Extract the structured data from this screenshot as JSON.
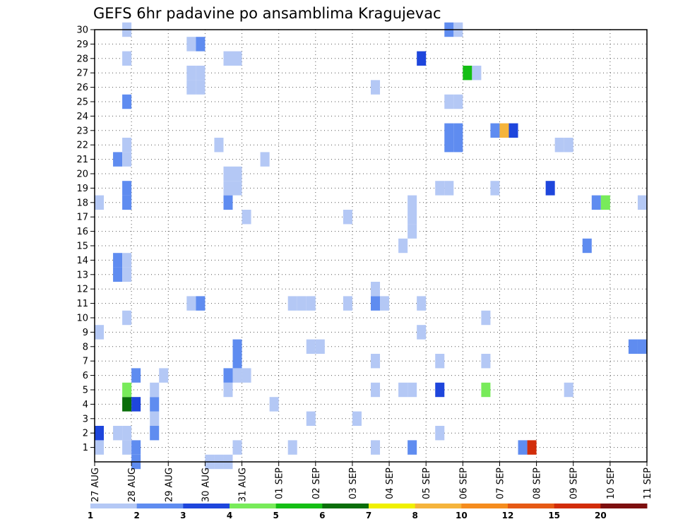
{
  "chart_data": {
    "type": "heatmap",
    "title": "GEFS 6hr padavine po ansamblima Kragujevac",
    "xlabel": "",
    "ylabel": "",
    "x_tick_labels": [
      "27 AUG",
      "28 AUG",
      "29 AUG",
      "30 AUG",
      "31 AUG",
      "01 SEP",
      "02 SEP",
      "03 SEP",
      "04 SEP",
      "05 SEP",
      "06 SEP",
      "07 SEP",
      "08 SEP",
      "09 SEP",
      "10 SEP",
      "11 SEP"
    ],
    "x_range_days": [
      0,
      15
    ],
    "y_tick_labels": [
      "1",
      "2",
      "3",
      "4",
      "5",
      "6",
      "7",
      "8",
      "9",
      "10",
      "11",
      "12",
      "13",
      "14",
      "15",
      "16",
      "17",
      "18",
      "19",
      "20",
      "21",
      "22",
      "23",
      "24",
      "25",
      "26",
      "27",
      "28",
      "29",
      "30"
    ],
    "grid": true,
    "legend_placement": "bottom",
    "color_scale": {
      "bounds": [
        "1",
        "2",
        "3",
        "4",
        "5",
        "6",
        "7",
        "8",
        "10",
        "12",
        "15",
        "20"
      ],
      "colors": [
        "#b4c8f5",
        "#5f8cf0",
        "#1e46dc",
        "#78eb5a",
        "#14be14",
        "#0a6e0a",
        "#f0f000",
        "#f5b43c",
        "#f58c1e",
        "#e65a14",
        "#d22d0a",
        "#7d0f0f"
      ]
    },
    "cells": [
      {
        "day": 0.25,
        "member": 1,
        "class": 0
      },
      {
        "day": 0.25,
        "member": 2,
        "class": 2
      },
      {
        "day": 0.25,
        "member": 9,
        "class": 0
      },
      {
        "day": 0.25,
        "member": 18,
        "class": 0
      },
      {
        "day": 0.75,
        "member": 2,
        "class": 0
      },
      {
        "day": 0.75,
        "member": 13,
        "class": 1
      },
      {
        "day": 0.75,
        "member": 14,
        "class": 1
      },
      {
        "day": 0.75,
        "member": 21,
        "class": 1
      },
      {
        "day": 1.0,
        "member": 1,
        "class": 0
      },
      {
        "day": 1.0,
        "member": 2,
        "class": 0
      },
      {
        "day": 1.0,
        "member": 4,
        "class": 5
      },
      {
        "day": 1.0,
        "member": 5,
        "class": 3
      },
      {
        "day": 1.0,
        "member": 10,
        "class": 0
      },
      {
        "day": 1.0,
        "member": 13,
        "class": 0
      },
      {
        "day": 1.0,
        "member": 14,
        "class": 0
      },
      {
        "day": 1.0,
        "member": 18,
        "class": 1
      },
      {
        "day": 1.0,
        "member": 19,
        "class": 1
      },
      {
        "day": 1.0,
        "member": 21,
        "class": 0
      },
      {
        "day": 1.0,
        "member": 22,
        "class": 0
      },
      {
        "day": 1.0,
        "member": 25,
        "class": 1
      },
      {
        "day": 1.0,
        "member": 28,
        "class": 0
      },
      {
        "day": 1.0,
        "member": 30,
        "class": 0
      },
      {
        "day": 1.25,
        "member": 0,
        "class": 1
      },
      {
        "day": 1.25,
        "member": 1,
        "class": 1
      },
      {
        "day": 1.25,
        "member": 4,
        "class": 2
      },
      {
        "day": 1.25,
        "member": 6,
        "class": 1
      },
      {
        "day": 1.75,
        "member": 2,
        "class": 1
      },
      {
        "day": 1.75,
        "member": 3,
        "class": 0
      },
      {
        "day": 1.75,
        "member": 4,
        "class": 1
      },
      {
        "day": 1.75,
        "member": 5,
        "class": 0
      },
      {
        "day": 2.0,
        "member": 6,
        "class": 0
      },
      {
        "day": 2.75,
        "member": 11,
        "class": 0
      },
      {
        "day": 2.75,
        "member": 26,
        "class": 0
      },
      {
        "day": 2.75,
        "member": 27,
        "class": 0
      },
      {
        "day": 2.75,
        "member": 29,
        "class": 0
      },
      {
        "day": 3.0,
        "member": 11,
        "class": 1
      },
      {
        "day": 3.0,
        "member": 26,
        "class": 0
      },
      {
        "day": 3.0,
        "member": 27,
        "class": 0
      },
      {
        "day": 3.0,
        "member": 29,
        "class": 1
      },
      {
        "day": 3.25,
        "member": 0,
        "class": 0
      },
      {
        "day": 3.5,
        "member": 0,
        "class": 0
      },
      {
        "day": 3.5,
        "member": 22,
        "class": 0
      },
      {
        "day": 3.75,
        "member": 0,
        "class": 0
      },
      {
        "day": 3.75,
        "member": 5,
        "class": 0
      },
      {
        "day": 3.75,
        "member": 6,
        "class": 1
      },
      {
        "day": 3.75,
        "member": 18,
        "class": 1
      },
      {
        "day": 3.75,
        "member": 19,
        "class": 0
      },
      {
        "day": 3.75,
        "member": 20,
        "class": 0
      },
      {
        "day": 3.75,
        "member": 28,
        "class": 0
      },
      {
        "day": 4.0,
        "member": 1,
        "class": 0
      },
      {
        "day": 4.0,
        "member": 6,
        "class": 0
      },
      {
        "day": 4.0,
        "member": 7,
        "class": 1
      },
      {
        "day": 4.0,
        "member": 8,
        "class": 1
      },
      {
        "day": 4.0,
        "member": 19,
        "class": 0
      },
      {
        "day": 4.0,
        "member": 20,
        "class": 0
      },
      {
        "day": 4.0,
        "member": 28,
        "class": 0
      },
      {
        "day": 4.25,
        "member": 6,
        "class": 0
      },
      {
        "day": 4.25,
        "member": 17,
        "class": 0
      },
      {
        "day": 4.75,
        "member": 21,
        "class": 0
      },
      {
        "day": 5.0,
        "member": 4,
        "class": 0
      },
      {
        "day": 5.5,
        "member": 1,
        "class": 0
      },
      {
        "day": 5.5,
        "member": 11,
        "class": 0
      },
      {
        "day": 5.75,
        "member": 11,
        "class": 0
      },
      {
        "day": 6.0,
        "member": 3,
        "class": 0
      },
      {
        "day": 6.0,
        "member": 8,
        "class": 0
      },
      {
        "day": 6.0,
        "member": 11,
        "class": 0
      },
      {
        "day": 6.25,
        "member": 8,
        "class": 0
      },
      {
        "day": 7.0,
        "member": 11,
        "class": 0
      },
      {
        "day": 7.0,
        "member": 17,
        "class": 0
      },
      {
        "day": 7.25,
        "member": 3,
        "class": 0
      },
      {
        "day": 7.75,
        "member": 1,
        "class": 0
      },
      {
        "day": 7.75,
        "member": 5,
        "class": 0
      },
      {
        "day": 7.75,
        "member": 7,
        "class": 0
      },
      {
        "day": 7.75,
        "member": 11,
        "class": 1
      },
      {
        "day": 7.75,
        "member": 12,
        "class": 0
      },
      {
        "day": 7.75,
        "member": 26,
        "class": 0
      },
      {
        "day": 8.0,
        "member": 11,
        "class": 0
      },
      {
        "day": 8.5,
        "member": 15,
        "class": 0
      },
      {
        "day": 8.5,
        "member": 5,
        "class": 0
      },
      {
        "day": 8.75,
        "member": 1,
        "class": 1
      },
      {
        "day": 8.75,
        "member": 5,
        "class": 0
      },
      {
        "day": 8.75,
        "member": 16,
        "class": 0
      },
      {
        "day": 8.75,
        "member": 17,
        "class": 0
      },
      {
        "day": 8.75,
        "member": 18,
        "class": 0
      },
      {
        "day": 9.0,
        "member": 9,
        "class": 0
      },
      {
        "day": 9.0,
        "member": 11,
        "class": 0
      },
      {
        "day": 9.0,
        "member": 28,
        "class": 2
      },
      {
        "day": 9.5,
        "member": 2,
        "class": 0
      },
      {
        "day": 9.5,
        "member": 5,
        "class": 2
      },
      {
        "day": 9.5,
        "member": 7,
        "class": 0
      },
      {
        "day": 9.5,
        "member": 19,
        "class": 0
      },
      {
        "day": 9.75,
        "member": 19,
        "class": 0
      },
      {
        "day": 9.75,
        "member": 22,
        "class": 1
      },
      {
        "day": 9.75,
        "member": 23,
        "class": 1
      },
      {
        "day": 9.75,
        "member": 25,
        "class": 0
      },
      {
        "day": 9.75,
        "member": 30,
        "class": 1
      },
      {
        "day": 10.0,
        "member": 22,
        "class": 1
      },
      {
        "day": 10.0,
        "member": 23,
        "class": 1
      },
      {
        "day": 10.0,
        "member": 25,
        "class": 0
      },
      {
        "day": 10.0,
        "member": 30,
        "class": 0
      },
      {
        "day": 10.25,
        "member": 27,
        "class": 4
      },
      {
        "day": 10.5,
        "member": 27,
        "class": 0
      },
      {
        "day": 10.75,
        "member": 5,
        "class": 3
      },
      {
        "day": 10.75,
        "member": 7,
        "class": 0
      },
      {
        "day": 10.75,
        "member": 10,
        "class": 0
      },
      {
        "day": 11.0,
        "member": 19,
        "class": 0
      },
      {
        "day": 11.0,
        "member": 23,
        "class": 1
      },
      {
        "day": 11.25,
        "member": 23,
        "class": 7
      },
      {
        "day": 11.5,
        "member": 23,
        "class": 2
      },
      {
        "day": 11.75,
        "member": 1,
        "class": 1
      },
      {
        "day": 12.0,
        "member": 1,
        "class": 10
      },
      {
        "day": 12.5,
        "member": 19,
        "class": 2
      },
      {
        "day": 12.75,
        "member": 22,
        "class": 0
      },
      {
        "day": 13.0,
        "member": 5,
        "class": 0
      },
      {
        "day": 13.0,
        "member": 22,
        "class": 0
      },
      {
        "day": 13.5,
        "member": 15,
        "class": 1
      },
      {
        "day": 13.75,
        "member": 18,
        "class": 1
      },
      {
        "day": 14.0,
        "member": 18,
        "class": 3
      },
      {
        "day": 14.75,
        "member": 8,
        "class": 1
      },
      {
        "day": 15.0,
        "member": 8,
        "class": 1
      },
      {
        "day": 15.0,
        "member": 18,
        "class": 0
      }
    ]
  }
}
